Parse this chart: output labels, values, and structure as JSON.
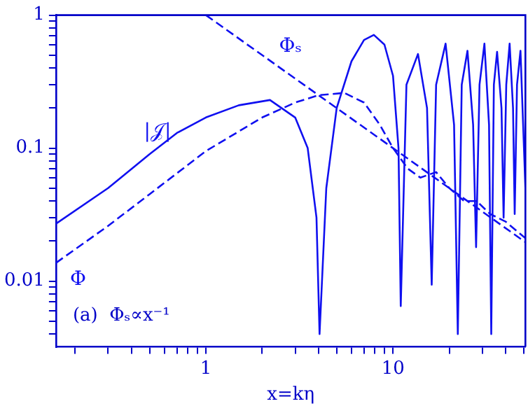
{
  "chart_data": {
    "type": "line",
    "xlabel": "x=kη",
    "log": "xy",
    "grid": false,
    "legend": false,
    "marker": "none",
    "xlim": [
      0.158,
      51
    ],
    "ylim": [
      0.0032,
      1
    ],
    "xticks": [
      {
        "value": 0.2,
        "label": null
      },
      {
        "value": 0.3,
        "label": null
      },
      {
        "value": 0.4,
        "label": null
      },
      {
        "value": 0.5,
        "label": null
      },
      {
        "value": 0.6,
        "label": null
      },
      {
        "value": 0.7,
        "label": null
      },
      {
        "value": 0.8,
        "label": null
      },
      {
        "value": 0.9,
        "label": null
      },
      1,
      {
        "value": 2,
        "label": null
      },
      {
        "value": 3,
        "label": null
      },
      {
        "value": 4,
        "label": null
      },
      {
        "value": 5,
        "label": null
      },
      {
        "value": 6,
        "label": null
      },
      {
        "value": 7,
        "label": null
      },
      {
        "value": 8,
        "label": null
      },
      {
        "value": 9,
        "label": null
      },
      10,
      {
        "value": 20,
        "label": null
      },
      {
        "value": 30,
        "label": null
      },
      {
        "value": 40,
        "label": null
      },
      {
        "value": 50,
        "label": null
      }
    ],
    "yticks": [
      {
        "value": 0.004,
        "label": null
      },
      {
        "value": 0.005,
        "label": null
      },
      {
        "value": 0.006,
        "label": null
      },
      {
        "value": 0.007,
        "label": null
      },
      {
        "value": 0.008,
        "label": null
      },
      {
        "value": 0.009,
        "label": null
      },
      0.01,
      {
        "value": 0.02,
        "label": null
      },
      {
        "value": 0.03,
        "label": null
      },
      {
        "value": 0.04,
        "label": null
      },
      {
        "value": 0.05,
        "label": null
      },
      {
        "value": 0.06,
        "label": null
      },
      {
        "value": 0.07,
        "label": null
      },
      {
        "value": 0.08,
        "label": null
      },
      {
        "value": 0.09,
        "label": null
      },
      0.1,
      {
        "value": 0.2,
        "label": null
      },
      {
        "value": 0.3,
        "label": null
      },
      {
        "value": 0.4,
        "label": null
      },
      {
        "value": 0.5,
        "label": null
      },
      {
        "value": 0.6,
        "label": null
      },
      {
        "value": 0.7,
        "label": null
      },
      {
        "value": 0.8,
        "label": null
      },
      {
        "value": 0.9,
        "label": null
      },
      1
    ],
    "series": [
      {
        "name": "|𝒥|",
        "color": "#1010f0",
        "line_style": "solid",
        "x": [
          0.158,
          0.3,
          0.5,
          0.7,
          1,
          1.5,
          2.2,
          3,
          3.5,
          3.9,
          4.05,
          4.4,
          5,
          6,
          7,
          7.9,
          9,
          10,
          10.7,
          11,
          11.8,
          13.6,
          15.2,
          16.1,
          17,
          19.1,
          21.2,
          22.2,
          23.3,
          25,
          26.8,
          27.8,
          29,
          30.8,
          32.6,
          33.5,
          34.6,
          36,
          38,
          39,
          40.3,
          42,
          43.8,
          44.7,
          46,
          48,
          51
        ],
        "values": [
          0.027,
          0.05,
          0.09,
          0.13,
          0.17,
          0.21,
          0.23,
          0.17,
          0.1,
          0.03,
          0.004,
          0.05,
          0.2,
          0.45,
          0.65,
          0.71,
          0.6,
          0.35,
          0.1,
          0.0065,
          0.3,
          0.51,
          0.2,
          0.0094,
          0.3,
          0.61,
          0.15,
          0.004,
          0.3,
          0.54,
          0.15,
          0.018,
          0.3,
          0.61,
          0.15,
          0.004,
          0.3,
          0.53,
          0.2,
          0.03,
          0.3,
          0.61,
          0.2,
          0.032,
          0.3,
          0.54,
          0.05
        ]
      },
      {
        "name": "Φ",
        "color": "#1010f0",
        "line_style": "dashed",
        "x": [
          0.158,
          0.3,
          0.5,
          1,
          2,
          3,
          4,
          5.5,
          7,
          8.5,
          10,
          12,
          14,
          17,
          20,
          24,
          28,
          33,
          40,
          51
        ],
        "values": [
          0.0137,
          0.026,
          0.045,
          0.095,
          0.17,
          0.22,
          0.25,
          0.26,
          0.22,
          0.15,
          0.1,
          0.07,
          0.06,
          0.066,
          0.05,
          0.04,
          0.04,
          0.032,
          0.028,
          0.021
        ]
      },
      {
        "name": "Φₛ",
        "color": "#1010f0",
        "line_style": "dashed",
        "x": [
          1,
          2,
          5,
          10,
          20,
          51
        ],
        "values": [
          1,
          0.5,
          0.2,
          0.1,
          0.05,
          0.0196
        ]
      }
    ],
    "annotations": [
      "(a)  Φₛ∝x⁻¹"
    ]
  }
}
